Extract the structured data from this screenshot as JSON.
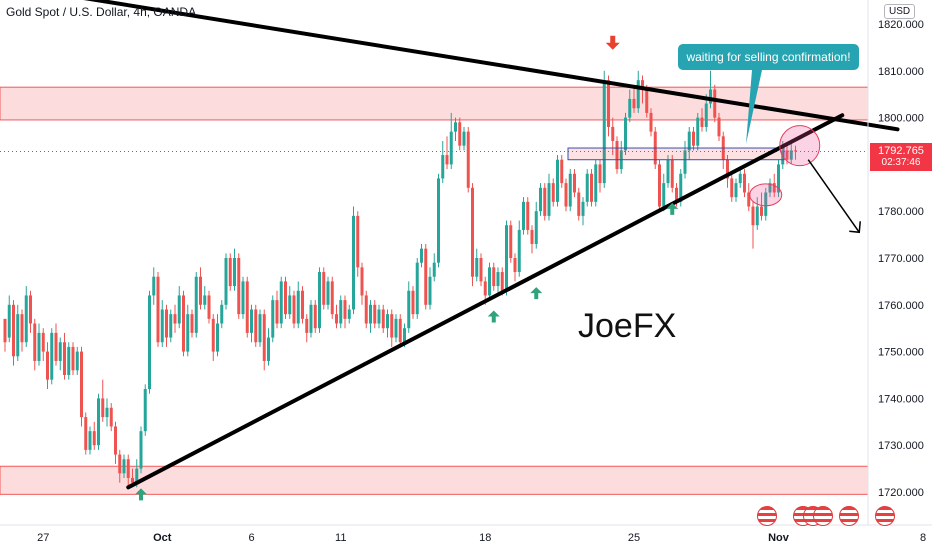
{
  "header": {
    "title": "Gold Spot / U.S. Dollar, 4h, OANDA",
    "currency": "USD"
  },
  "annotations": {
    "callout_text": "waiting for selling confirmation!",
    "watermark": "JoeFX"
  },
  "price_tag": {
    "price": "1792.765",
    "countdown": "02:37:46"
  },
  "colors": {
    "bull": "#26a69a",
    "bear": "#ef5350",
    "zone_fill": "#fcdcdc",
    "zone_border": "#f05a5a",
    "callout": "#26a4b1",
    "price_tag": "#f23645"
  },
  "chart_data": {
    "type": "candlestick",
    "title": "Gold Spot / U.S. Dollar, 4h, OANDA",
    "ylim": [
      1717,
      1824
    ],
    "y_ticks": [
      1720,
      1730,
      1740,
      1750,
      1760,
      1770,
      1780,
      1790,
      1800,
      1810,
      1820
    ],
    "y_tick_labels": [
      "1720.000",
      "1730.000",
      "1740.000",
      "1750.000",
      "1760.000",
      "1770.000",
      "1780.000",
      "1790.000",
      "1800.000",
      "1810.000",
      "1820.000"
    ],
    "x_tick_labels": [
      "27",
      "Oct",
      "6",
      "11",
      "18",
      "25",
      "Nov",
      "8"
    ],
    "bar_count": 210,
    "x_tick_bar_index": [
      9,
      37,
      58,
      79,
      113,
      148,
      182,
      216
    ],
    "last_price": 1792.765,
    "resistance_zones": [
      [
        1799.5,
        1806.5
      ],
      [
        1719.5,
        1725.5
      ]
    ],
    "zoom_box": [
      1791,
      1793.5
    ],
    "trendlines": [
      {
        "from": [
          "-5",
          1829
        ],
        "to": [
          "210",
          1797.5
        ]
      },
      {
        "from": [
          "29",
          1721
        ],
        "to": [
          "197",
          1800.5
        ]
      }
    ],
    "sell_arrow": {
      "from": [
        "189",
        1791
      ],
      "to": [
        "201",
        1775.5
      ]
    },
    "buy_markers": [
      [
        "32",
        1719.5
      ],
      [
        "115",
        1757.5
      ],
      [
        "125",
        1762.5
      ],
      [
        "157",
        1780.5
      ]
    ],
    "sell_marker": [
      "143",
      1816
    ],
    "ellipses": [
      {
        "center": [
          "187",
          1794
        ],
        "rx": 12,
        "ry": 14
      },
      {
        "center": [
          "179",
          1783.5
        ],
        "rx": 8,
        "ry": 5
      }
    ],
    "candles": [
      [
        1757.0,
        1752.0,
        1753.0,
        1750.0
      ],
      [
        1753.0,
        1760.0,
        1762.0,
        1752.0
      ],
      [
        1760.0,
        1749.0,
        1761.0,
        1747.0
      ],
      [
        1749.0,
        1758.0,
        1760.0,
        1748.0
      ],
      [
        1758.0,
        1752.0,
        1759.0,
        1750.0
      ],
      [
        1752.0,
        1762.0,
        1764.0,
        1751.0
      ],
      [
        1762.0,
        1756.0,
        1763.0,
        1754.0
      ],
      [
        1756.0,
        1748.0,
        1757.0,
        1746.0
      ],
      [
        1748.0,
        1754.0,
        1756.0,
        1747.0
      ],
      [
        1754.0,
        1750.0,
        1755.0,
        1748.0
      ],
      [
        1750.0,
        1744.0,
        1752.0,
        1742.0
      ],
      [
        1744.0,
        1754.0,
        1755.0,
        1743.0
      ],
      [
        1754.0,
        1748.0,
        1756.0,
        1747.0
      ],
      [
        1748.0,
        1752.0,
        1753.0,
        1746.0
      ],
      [
        1752.0,
        1745.0,
        1754.0,
        1744.0
      ],
      [
        1745.0,
        1751.0,
        1752.0,
        1744.0
      ],
      [
        1751.0,
        1746.0,
        1752.0,
        1745.0
      ],
      [
        1746.0,
        1750.0,
        1751.0,
        1745.0
      ],
      [
        1750.0,
        1736.0,
        1751.0,
        1734.0
      ],
      [
        1736.0,
        1729.0,
        1737.0,
        1728.0
      ],
      [
        1729.0,
        1733.0,
        1734.0,
        1728.0
      ],
      [
        1733.0,
        1730.0,
        1735.0,
        1729.0
      ],
      [
        1730.0,
        1740.0,
        1741.0,
        1729.0
      ],
      [
        1740.0,
        1736.0,
        1744.0,
        1735.0
      ],
      [
        1736.0,
        1738.0,
        1740.0,
        1734.0
      ],
      [
        1738.0,
        1734.0,
        1739.0,
        1733.0
      ],
      [
        1734.0,
        1728.0,
        1735.0,
        1726.0
      ],
      [
        1728.0,
        1724.0,
        1729.0,
        1722.0
      ],
      [
        1724.0,
        1727.0,
        1728.0,
        1723.0
      ],
      [
        1727.0,
        1723.0,
        1728.0,
        1721.0
      ],
      [
        1723.0,
        1722.0,
        1725.0,
        1721.0
      ],
      [
        1722.0,
        1725.0,
        1727.0,
        1721.0
      ],
      [
        1725.0,
        1733.0,
        1734.0,
        1724.0
      ],
      [
        1733.0,
        1742.0,
        1743.0,
        1732.0
      ],
      [
        1742.0,
        1762.0,
        1763.0,
        1741.0
      ],
      [
        1762.0,
        1766.0,
        1768.0,
        1760.0
      ],
      [
        1766.0,
        1752.0,
        1767.0,
        1751.0
      ],
      [
        1752.0,
        1759.0,
        1761.0,
        1751.0
      ],
      [
        1759.0,
        1753.0,
        1760.0,
        1751.0
      ],
      [
        1753.0,
        1758.0,
        1759.0,
        1752.0
      ],
      [
        1758.0,
        1756.0,
        1760.0,
        1754.0
      ],
      [
        1756.0,
        1762.0,
        1764.0,
        1755.0
      ],
      [
        1762.0,
        1750.0,
        1763.0,
        1749.0
      ],
      [
        1750.0,
        1758.0,
        1760.0,
        1749.0
      ],
      [
        1758.0,
        1754.0,
        1759.0,
        1753.0
      ],
      [
        1754.0,
        1766.0,
        1767.0,
        1753.0
      ],
      [
        1766.0,
        1760.0,
        1768.0,
        1759.0
      ],
      [
        1760.0,
        1762.0,
        1764.0,
        1759.0
      ],
      [
        1762.0,
        1757.0,
        1763.0,
        1756.0
      ],
      [
        1757.0,
        1750.0,
        1758.0,
        1748.0
      ],
      [
        1750.0,
        1756.0,
        1758.0,
        1749.0
      ],
      [
        1756.0,
        1760.0,
        1761.0,
        1755.0
      ],
      [
        1760.0,
        1770.0,
        1771.0,
        1759.0
      ],
      [
        1770.0,
        1764.0,
        1771.0,
        1763.0
      ],
      [
        1764.0,
        1770.0,
        1772.0,
        1763.0
      ],
      [
        1770.0,
        1758.0,
        1771.0,
        1757.0
      ],
      [
        1758.0,
        1765.0,
        1766.0,
        1757.0
      ],
      [
        1765.0,
        1754.0,
        1766.0,
        1753.0
      ],
      [
        1754.0,
        1759.0,
        1760.0,
        1752.0
      ],
      [
        1759.0,
        1752.0,
        1760.0,
        1751.0
      ],
      [
        1752.0,
        1758.0,
        1759.0,
        1751.0
      ],
      [
        1758.0,
        1748.0,
        1759.0,
        1746.0
      ],
      [
        1748.0,
        1753.0,
        1755.0,
        1747.0
      ],
      [
        1753.0,
        1761.0,
        1762.0,
        1752.0
      ],
      [
        1761.0,
        1756.0,
        1763.0,
        1755.0
      ],
      [
        1756.0,
        1765.0,
        1766.0,
        1755.0
      ],
      [
        1765.0,
        1758.0,
        1766.0,
        1757.0
      ],
      [
        1758.0,
        1762.0,
        1764.0,
        1757.0
      ],
      [
        1762.0,
        1756.0,
        1763.0,
        1755.0
      ],
      [
        1756.0,
        1763.0,
        1765.0,
        1755.0
      ],
      [
        1763.0,
        1757.0,
        1764.0,
        1756.0
      ],
      [
        1757.0,
        1754.0,
        1758.0,
        1752.0
      ],
      [
        1754.0,
        1760.0,
        1761.0,
        1753.0
      ],
      [
        1760.0,
        1755.0,
        1761.0,
        1754.0
      ],
      [
        1755.0,
        1767.0,
        1768.0,
        1754.0
      ],
      [
        1767.0,
        1760.0,
        1768.0,
        1759.0
      ],
      [
        1760.0,
        1765.0,
        1766.0,
        1759.0
      ],
      [
        1765.0,
        1758.0,
        1766.0,
        1757.0
      ],
      [
        1758.0,
        1756.0,
        1760.0,
        1755.0
      ],
      [
        1756.0,
        1761.0,
        1762.0,
        1755.0
      ],
      [
        1761.0,
        1757.0,
        1762.0,
        1755.0
      ],
      [
        1757.0,
        1759.0,
        1760.0,
        1756.0
      ],
      [
        1759.0,
        1779.0,
        1781.0,
        1758.0
      ],
      [
        1779.0,
        1768.0,
        1780.0,
        1766.0
      ],
      [
        1768.0,
        1762.0,
        1769.0,
        1760.0
      ],
      [
        1762.0,
        1756.0,
        1763.0,
        1755.0
      ],
      [
        1756.0,
        1760.0,
        1761.0,
        1754.0
      ],
      [
        1760.0,
        1756.0,
        1761.0,
        1755.0
      ],
      [
        1756.0,
        1759.0,
        1760.0,
        1755.0
      ],
      [
        1759.0,
        1755.0,
        1760.0,
        1754.0
      ],
      [
        1755.0,
        1758.0,
        1759.0,
        1753.0
      ],
      [
        1758.0,
        1753.0,
        1759.0,
        1751.0
      ],
      [
        1753.0,
        1757.0,
        1758.0,
        1752.0
      ],
      [
        1757.0,
        1752.0,
        1758.0,
        1751.0
      ],
      [
        1752.0,
        1755.0,
        1756.0,
        1751.0
      ],
      [
        1755.0,
        1763.0,
        1765.0,
        1754.0
      ],
      [
        1763.0,
        1758.0,
        1764.0,
        1757.0
      ],
      [
        1758.0,
        1769.0,
        1770.0,
        1757.0
      ],
      [
        1769.0,
        1772.0,
        1773.0,
        1768.0
      ],
      [
        1772.0,
        1760.0,
        1773.0,
        1759.0
      ],
      [
        1760.0,
        1766.0,
        1768.0,
        1759.0
      ],
      [
        1766.0,
        1769.0,
        1771.0,
        1765.0
      ],
      [
        1769.0,
        1787.0,
        1788.0,
        1768.0
      ],
      [
        1787.0,
        1792.0,
        1795.0,
        1786.0
      ],
      [
        1792.0,
        1790.0,
        1796.0,
        1789.0
      ],
      [
        1790.0,
        1797.0,
        1801.0,
        1789.0
      ],
      [
        1797.0,
        1799.0,
        1800.0,
        1795.0
      ],
      [
        1799.0,
        1794.0,
        1800.0,
        1793.0
      ],
      [
        1794.0,
        1797.0,
        1798.0,
        1793.0
      ],
      [
        1797.0,
        1785.0,
        1798.0,
        1784.0
      ],
      [
        1785.0,
        1766.0,
        1786.0,
        1764.0
      ],
      [
        1766.0,
        1770.0,
        1772.0,
        1765.0
      ],
      [
        1770.0,
        1765.0,
        1771.0,
        1764.0
      ],
      [
        1765.0,
        1762.0,
        1766.0,
        1760.0
      ],
      [
        1762.0,
        1768.0,
        1769.0,
        1761.0
      ],
      [
        1768.0,
        1764.0,
        1769.0,
        1763.0
      ],
      [
        1764.0,
        1767.0,
        1768.0,
        1762.0
      ],
      [
        1767.0,
        1763.0,
        1768.0,
        1762.0
      ],
      [
        1763.0,
        1777.0,
        1778.0,
        1762.0
      ],
      [
        1777.0,
        1770.0,
        1778.0,
        1769.0
      ],
      [
        1770.0,
        1767.0,
        1771.0,
        1765.0
      ],
      [
        1767.0,
        1776.0,
        1778.0,
        1766.0
      ],
      [
        1776.0,
        1782.0,
        1783.0,
        1775.0
      ],
      [
        1782.0,
        1776.0,
        1783.0,
        1775.0
      ],
      [
        1776.0,
        1773.0,
        1777.0,
        1771.0
      ],
      [
        1773.0,
        1780.0,
        1782.0,
        1772.0
      ],
      [
        1780.0,
        1785.0,
        1786.0,
        1779.0
      ],
      [
        1785.0,
        1779.0,
        1786.0,
        1778.0
      ],
      [
        1779.0,
        1786.0,
        1788.0,
        1778.0
      ],
      [
        1786.0,
        1782.0,
        1787.0,
        1781.0
      ],
      [
        1782.0,
        1791.0,
        1792.0,
        1781.0
      ],
      [
        1791.0,
        1786.0,
        1792.0,
        1785.0
      ],
      [
        1786.0,
        1781.0,
        1787.0,
        1780.0
      ],
      [
        1781.0,
        1788.0,
        1789.0,
        1780.0
      ],
      [
        1788.0,
        1784.0,
        1789.0,
        1783.0
      ],
      [
        1784.0,
        1779.0,
        1785.0,
        1778.0
      ],
      [
        1779.0,
        1782.0,
        1783.0,
        1777.0
      ],
      [
        1782.0,
        1788.0,
        1789.0,
        1781.0
      ],
      [
        1788.0,
        1782.0,
        1789.0,
        1781.0
      ],
      [
        1782.0,
        1790.0,
        1791.0,
        1781.0
      ],
      [
        1790.0,
        1786.0,
        1791.0,
        1784.0
      ],
      [
        1786.0,
        1808.0,
        1810.0,
        1785.0
      ],
      [
        1808.0,
        1798.0,
        1809.0,
        1796.0
      ],
      [
        1798.0,
        1795.0,
        1800.0,
        1792.0
      ],
      [
        1795.0,
        1789.0,
        1796.0,
        1788.0
      ],
      [
        1789.0,
        1793.0,
        1795.0,
        1788.0
      ],
      [
        1793.0,
        1800.0,
        1801.0,
        1792.0
      ],
      [
        1800.0,
        1804.0,
        1806.0,
        1799.0
      ],
      [
        1804.0,
        1802.0,
        1807.0,
        1801.0
      ],
      [
        1802.0,
        1808.0,
        1810.0,
        1801.0
      ],
      [
        1808.0,
        1806.0,
        1809.0,
        1803.0
      ],
      [
        1806.0,
        1801.0,
        1807.0,
        1800.0
      ],
      [
        1801.0,
        1797.0,
        1802.0,
        1796.0
      ],
      [
        1797.0,
        1790.0,
        1798.0,
        1789.0
      ],
      [
        1790.0,
        1781.0,
        1791.0,
        1780.0
      ],
      [
        1781.0,
        1786.0,
        1788.0,
        1780.0
      ],
      [
        1786.0,
        1791.0,
        1792.0,
        1785.0
      ],
      [
        1791.0,
        1785.0,
        1792.0,
        1784.0
      ],
      [
        1785.0,
        1782.0,
        1786.0,
        1781.0
      ],
      [
        1782.0,
        1788.0,
        1789.0,
        1781.0
      ],
      [
        1788.0,
        1793.0,
        1795.0,
        1787.0
      ],
      [
        1793.0,
        1797.0,
        1798.0,
        1791.0
      ],
      [
        1797.0,
        1794.0,
        1798.0,
        1793.0
      ],
      [
        1794.0,
        1800.0,
        1801.0,
        1793.0
      ],
      [
        1800.0,
        1798.0,
        1802.0,
        1797.0
      ],
      [
        1798.0,
        1803.0,
        1805.0,
        1797.0
      ],
      [
        1803.0,
        1806.0,
        1810.0,
        1802.0
      ],
      [
        1806.0,
        1800.0,
        1807.0,
        1799.0
      ],
      [
        1800.0,
        1796.0,
        1801.0,
        1795.0
      ],
      [
        1796.0,
        1791.0,
        1797.0,
        1789.0
      ],
      [
        1791.0,
        1787.0,
        1792.0,
        1785.0
      ],
      [
        1787.0,
        1783.0,
        1788.0,
        1782.0
      ],
      [
        1783.0,
        1786.0,
        1787.0,
        1782.0
      ],
      [
        1786.0,
        1788.0,
        1789.0,
        1785.0
      ],
      [
        1788.0,
        1784.0,
        1789.0,
        1783.0
      ],
      [
        1784.0,
        1781.0,
        1786.0,
        1780.0
      ],
      [
        1781.0,
        1777.0,
        1782.0,
        1772.0
      ],
      [
        1777.0,
        1781.0,
        1783.0,
        1776.0
      ],
      [
        1781.0,
        1779.0,
        1784.0,
        1778.0
      ],
      [
        1779.0,
        1784.0,
        1785.0,
        1778.0
      ],
      [
        1784.0,
        1786.0,
        1787.0,
        1783.0
      ],
      [
        1786.0,
        1784.0,
        1788.0,
        1783.0
      ],
      [
        1784.0,
        1790.0,
        1791.0,
        1783.0
      ],
      [
        1790.0,
        1793.0,
        1795.0,
        1789.0
      ],
      [
        1793.0,
        1791.0,
        1794.0,
        1790.0
      ],
      [
        1791.0,
        1793.0,
        1795.0,
        1790.0
      ],
      [
        1793.0,
        1792.8,
        1794.0,
        1791.0
      ]
    ]
  }
}
